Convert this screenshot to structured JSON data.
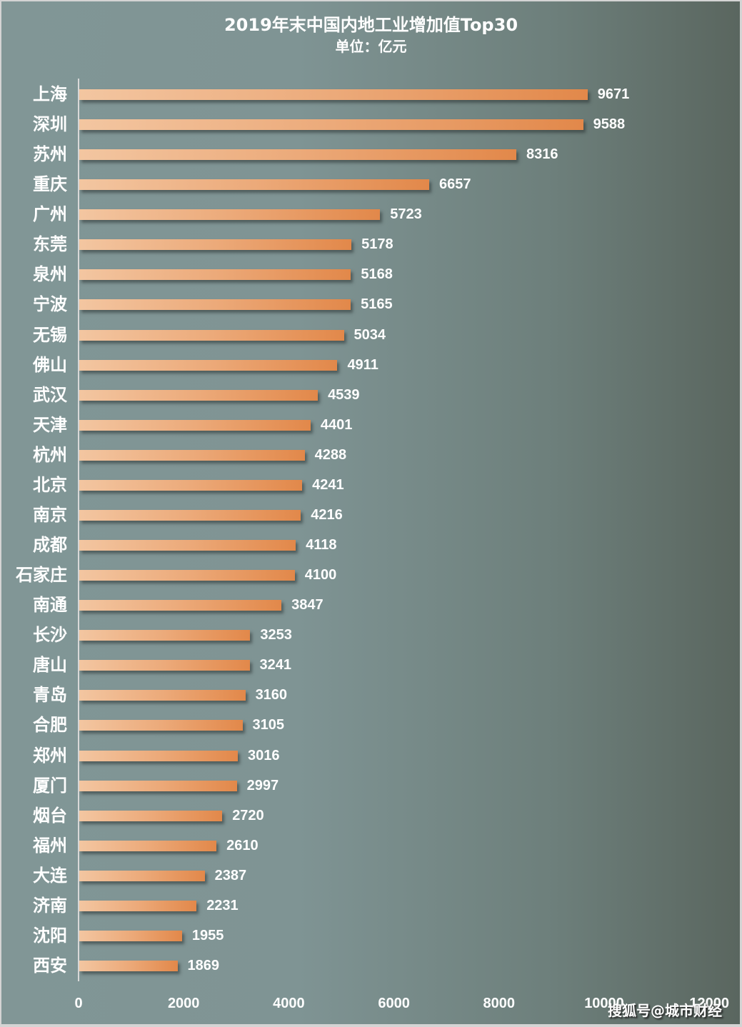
{
  "chart_data": {
    "type": "bar",
    "orientation": "horizontal",
    "title": "2019年末中国内地工业增加值Top30",
    "subtitle": "单位：亿元",
    "xlabel": "",
    "ylabel": "",
    "xlim": [
      0,
      12000
    ],
    "x_ticks": [
      "0",
      "2000",
      "4000",
      "6000",
      "8000",
      "10000",
      "12000"
    ],
    "grid": false,
    "legend": null,
    "data_labels": true,
    "categories": [
      "上海",
      "深圳",
      "苏州",
      "重庆",
      "广州",
      "东莞",
      "泉州",
      "宁波",
      "无锡",
      "佛山",
      "武汉",
      "天津",
      "杭州",
      "北京",
      "南京",
      "成都",
      "石家庄",
      "南通",
      "长沙",
      "唐山",
      "青岛",
      "合肥",
      "郑州",
      "厦门",
      "烟台",
      "福州",
      "大连",
      "济南",
      "沈阳",
      "西安"
    ],
    "values": [
      9671,
      9588,
      8316,
      6657,
      5723,
      5178,
      5168,
      5165,
      5034,
      4911,
      4539,
      4401,
      4288,
      4241,
      4216,
      4118,
      4100,
      3847,
      3253,
      3241,
      3160,
      3105,
      3016,
      2997,
      2720,
      2610,
      2387,
      2231,
      1955,
      1869
    ],
    "colors": {
      "bar_start": "#f3c6a1",
      "bar_end": "#e2884a",
      "background_left": "#819696",
      "background_right": "#5a665f",
      "text": "#ffffff"
    }
  },
  "watermark": "搜狐号@城市财经"
}
